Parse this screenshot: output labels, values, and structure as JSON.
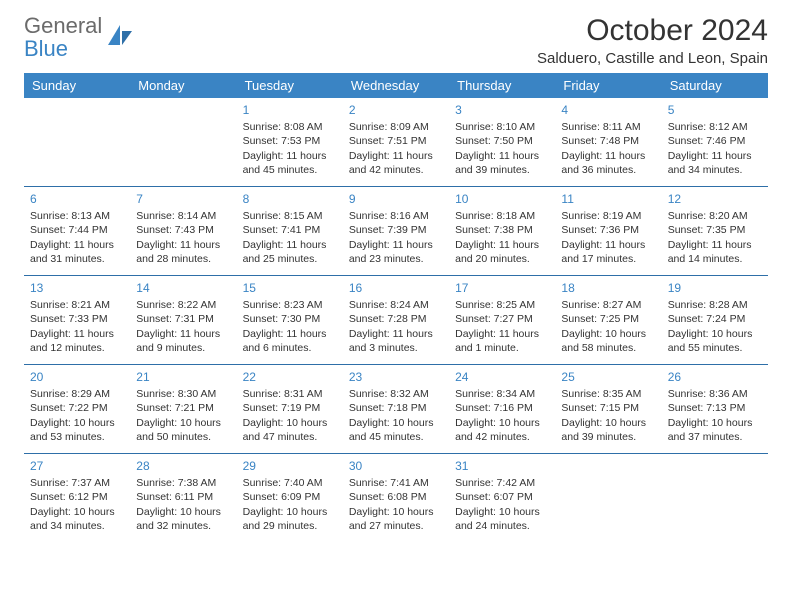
{
  "brand": {
    "word1": "General",
    "word2": "Blue"
  },
  "title": "October 2024",
  "location": "Salduero, Castille and Leon, Spain",
  "colors": {
    "header_bg": "#3a84c4",
    "header_text": "#ffffff",
    "rule": "#2e6fa8",
    "daynum": "#3a84c4",
    "body_text": "#333333",
    "logo_gray": "#6b6b6b"
  },
  "days_of_week": [
    "Sunday",
    "Monday",
    "Tuesday",
    "Wednesday",
    "Thursday",
    "Friday",
    "Saturday"
  ],
  "weeks": [
    [
      {
        "n": "",
        "t": ""
      },
      {
        "n": "",
        "t": ""
      },
      {
        "n": "1",
        "t": "Sunrise: 8:08 AM\nSunset: 7:53 PM\nDaylight: 11 hours and 45 minutes."
      },
      {
        "n": "2",
        "t": "Sunrise: 8:09 AM\nSunset: 7:51 PM\nDaylight: 11 hours and 42 minutes."
      },
      {
        "n": "3",
        "t": "Sunrise: 8:10 AM\nSunset: 7:50 PM\nDaylight: 11 hours and 39 minutes."
      },
      {
        "n": "4",
        "t": "Sunrise: 8:11 AM\nSunset: 7:48 PM\nDaylight: 11 hours and 36 minutes."
      },
      {
        "n": "5",
        "t": "Sunrise: 8:12 AM\nSunset: 7:46 PM\nDaylight: 11 hours and 34 minutes."
      }
    ],
    [
      {
        "n": "6",
        "t": "Sunrise: 8:13 AM\nSunset: 7:44 PM\nDaylight: 11 hours and 31 minutes."
      },
      {
        "n": "7",
        "t": "Sunrise: 8:14 AM\nSunset: 7:43 PM\nDaylight: 11 hours and 28 minutes."
      },
      {
        "n": "8",
        "t": "Sunrise: 8:15 AM\nSunset: 7:41 PM\nDaylight: 11 hours and 25 minutes."
      },
      {
        "n": "9",
        "t": "Sunrise: 8:16 AM\nSunset: 7:39 PM\nDaylight: 11 hours and 23 minutes."
      },
      {
        "n": "10",
        "t": "Sunrise: 8:18 AM\nSunset: 7:38 PM\nDaylight: 11 hours and 20 minutes."
      },
      {
        "n": "11",
        "t": "Sunrise: 8:19 AM\nSunset: 7:36 PM\nDaylight: 11 hours and 17 minutes."
      },
      {
        "n": "12",
        "t": "Sunrise: 8:20 AM\nSunset: 7:35 PM\nDaylight: 11 hours and 14 minutes."
      }
    ],
    [
      {
        "n": "13",
        "t": "Sunrise: 8:21 AM\nSunset: 7:33 PM\nDaylight: 11 hours and 12 minutes."
      },
      {
        "n": "14",
        "t": "Sunrise: 8:22 AM\nSunset: 7:31 PM\nDaylight: 11 hours and 9 minutes."
      },
      {
        "n": "15",
        "t": "Sunrise: 8:23 AM\nSunset: 7:30 PM\nDaylight: 11 hours and 6 minutes."
      },
      {
        "n": "16",
        "t": "Sunrise: 8:24 AM\nSunset: 7:28 PM\nDaylight: 11 hours and 3 minutes."
      },
      {
        "n": "17",
        "t": "Sunrise: 8:25 AM\nSunset: 7:27 PM\nDaylight: 11 hours and 1 minute."
      },
      {
        "n": "18",
        "t": "Sunrise: 8:27 AM\nSunset: 7:25 PM\nDaylight: 10 hours and 58 minutes."
      },
      {
        "n": "19",
        "t": "Sunrise: 8:28 AM\nSunset: 7:24 PM\nDaylight: 10 hours and 55 minutes."
      }
    ],
    [
      {
        "n": "20",
        "t": "Sunrise: 8:29 AM\nSunset: 7:22 PM\nDaylight: 10 hours and 53 minutes."
      },
      {
        "n": "21",
        "t": "Sunrise: 8:30 AM\nSunset: 7:21 PM\nDaylight: 10 hours and 50 minutes."
      },
      {
        "n": "22",
        "t": "Sunrise: 8:31 AM\nSunset: 7:19 PM\nDaylight: 10 hours and 47 minutes."
      },
      {
        "n": "23",
        "t": "Sunrise: 8:32 AM\nSunset: 7:18 PM\nDaylight: 10 hours and 45 minutes."
      },
      {
        "n": "24",
        "t": "Sunrise: 8:34 AM\nSunset: 7:16 PM\nDaylight: 10 hours and 42 minutes."
      },
      {
        "n": "25",
        "t": "Sunrise: 8:35 AM\nSunset: 7:15 PM\nDaylight: 10 hours and 39 minutes."
      },
      {
        "n": "26",
        "t": "Sunrise: 8:36 AM\nSunset: 7:13 PM\nDaylight: 10 hours and 37 minutes."
      }
    ],
    [
      {
        "n": "27",
        "t": "Sunrise: 7:37 AM\nSunset: 6:12 PM\nDaylight: 10 hours and 34 minutes."
      },
      {
        "n": "28",
        "t": "Sunrise: 7:38 AM\nSunset: 6:11 PM\nDaylight: 10 hours and 32 minutes."
      },
      {
        "n": "29",
        "t": "Sunrise: 7:40 AM\nSunset: 6:09 PM\nDaylight: 10 hours and 29 minutes."
      },
      {
        "n": "30",
        "t": "Sunrise: 7:41 AM\nSunset: 6:08 PM\nDaylight: 10 hours and 27 minutes."
      },
      {
        "n": "31",
        "t": "Sunrise: 7:42 AM\nSunset: 6:07 PM\nDaylight: 10 hours and 24 minutes."
      },
      {
        "n": "",
        "t": ""
      },
      {
        "n": "",
        "t": ""
      }
    ]
  ]
}
